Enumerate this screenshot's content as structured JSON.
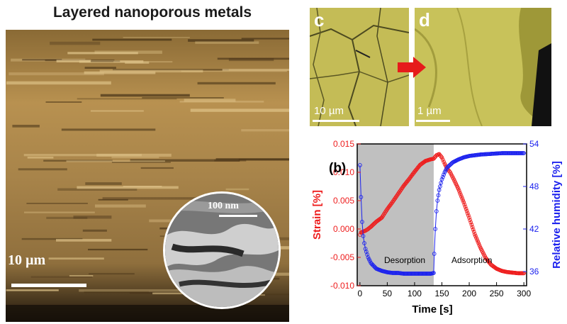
{
  "figure": {
    "title": "Layered nanoporous metals",
    "main_image": {
      "scale_label": "10 µm"
    },
    "inset_image": {
      "scale_label": "100 nm"
    },
    "panel_c": {
      "letter": "c",
      "scale_label": "10 µm"
    },
    "panel_d": {
      "letter": "d",
      "scale_label": "1 µm"
    }
  },
  "colors": {
    "strain": "#ee1c1c",
    "humidity": "#1c22ee",
    "desorption_shade": "#c0c0c0",
    "arrow": "#e61b1b",
    "sem_gold": "#c9a35b",
    "sem_yellow": "#c8c25a"
  },
  "chart_data": {
    "type": "scatter",
    "panel_label": "(b)",
    "xlabel": "Time [s]",
    "ylabel_left": "Strain [%]",
    "ylabel_right": "Relative humidity [%]",
    "xlim": [
      -5,
      305
    ],
    "ylim_left": [
      -0.01,
      0.015
    ],
    "ylim_right": [
      34,
      54
    ],
    "x_ticks": [
      0,
      50,
      100,
      150,
      200,
      250,
      300
    ],
    "y_left_ticks": [
      "-0.010",
      "-0.005",
      "0.000",
      "0.005",
      "0.010",
      "0.015"
    ],
    "y_right_ticks": [
      36,
      42,
      48,
      54
    ],
    "annotations": [
      "Desorption",
      "Adsorption"
    ],
    "desorption_region_x": [
      -5,
      135
    ],
    "series": [
      {
        "axis": "left",
        "color": "#ee1c1c",
        "x": [
          0,
          2,
          5,
          10,
          15,
          20,
          30,
          40,
          50,
          60,
          70,
          80,
          90,
          100,
          110,
          120,
          130,
          135,
          140,
          145,
          150,
          155,
          160,
          165,
          170,
          180,
          190,
          200,
          210,
          220,
          230,
          240,
          250,
          260,
          270,
          280,
          290,
          300
        ],
        "values": [
          -0.001,
          -0.0006,
          -0.0005,
          -0.0003,
          0.0,
          0.0004,
          0.0013,
          0.002,
          0.0035,
          0.0048,
          0.0062,
          0.0076,
          0.0088,
          0.0101,
          0.0113,
          0.012,
          0.0123,
          0.0124,
          0.013,
          0.0132,
          0.0126,
          0.0115,
          0.0106,
          0.01,
          0.0091,
          0.0071,
          0.0047,
          0.002,
          -0.0009,
          -0.0032,
          -0.0051,
          -0.0063,
          -0.007,
          -0.0074,
          -0.0076,
          -0.0077,
          -0.0078,
          -0.0078
        ]
      },
      {
        "axis": "right",
        "color": "#1c22ee",
        "x": [
          0,
          2,
          4,
          6,
          8,
          10,
          15,
          20,
          25,
          30,
          40,
          50,
          60,
          70,
          80,
          90,
          100,
          110,
          120,
          130,
          135,
          136,
          138,
          140,
          142,
          145,
          150,
          155,
          160,
          170,
          180,
          190,
          200,
          220,
          240,
          260,
          280,
          300
        ],
        "values": [
          51.0,
          46.5,
          43.0,
          41.0,
          40.0,
          39.2,
          38.0,
          37.2,
          36.8,
          36.4,
          36.1,
          35.9,
          35.8,
          35.8,
          35.7,
          35.7,
          35.7,
          35.7,
          35.7,
          35.7,
          35.8,
          38.5,
          42.0,
          44.5,
          46.0,
          47.5,
          49.0,
          50.0,
          50.7,
          51.4,
          51.8,
          52.1,
          52.3,
          52.5,
          52.6,
          52.7,
          52.7,
          52.7
        ]
      }
    ]
  }
}
